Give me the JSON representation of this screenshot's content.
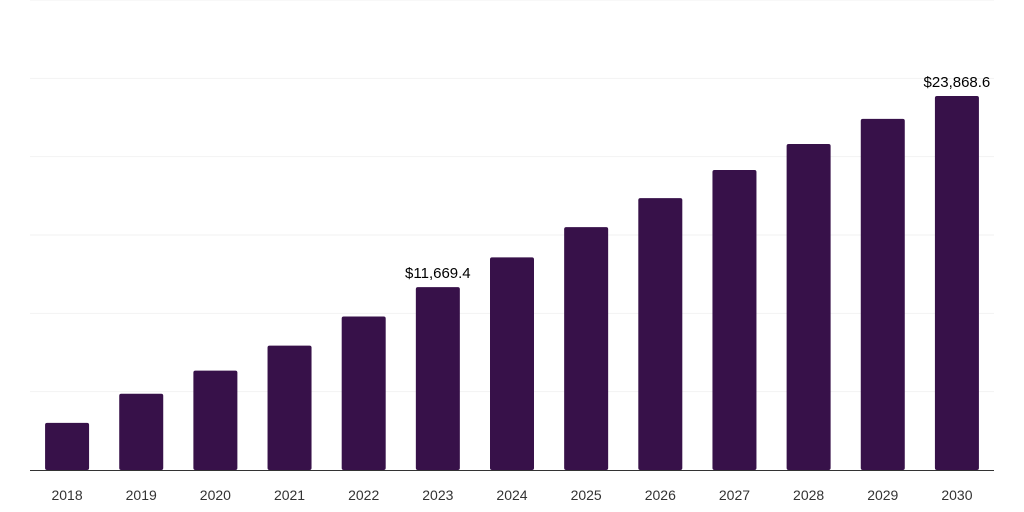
{
  "chart_data": {
    "type": "bar",
    "title": "",
    "xlabel": "",
    "ylabel": "",
    "categories": [
      "2018",
      "2019",
      "2020",
      "2021",
      "2022",
      "2023",
      "2024",
      "2025",
      "2026",
      "2027",
      "2028",
      "2029",
      "2030"
    ],
    "values": [
      3010,
      4870,
      6340,
      7940,
      9800,
      11669.4,
      13570,
      15500,
      17350,
      19150,
      20810,
      22410,
      23868.6
    ],
    "data_labels": {
      "5": "$11,669.4",
      "12": "$23,868.6"
    },
    "ylim": [
      0,
      30000
    ],
    "grid": true,
    "y_gridline_step": 5000,
    "bar_color": "#371149",
    "legend": "none"
  }
}
